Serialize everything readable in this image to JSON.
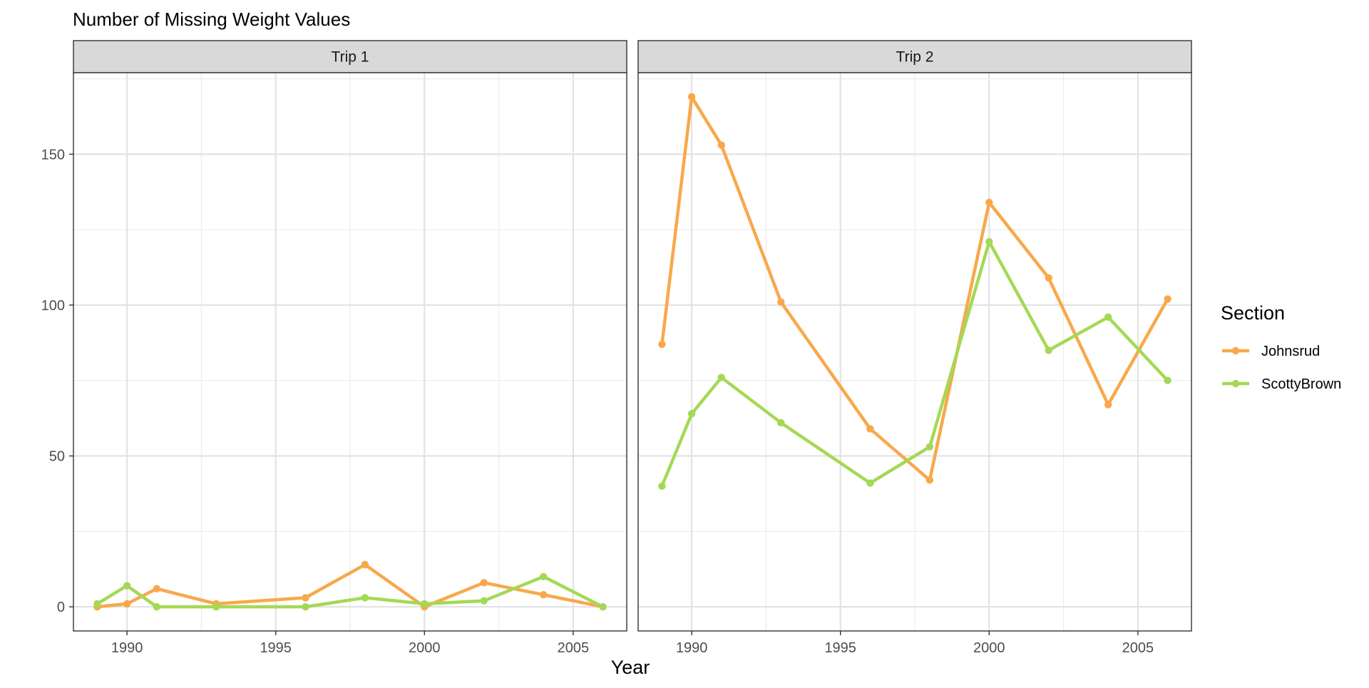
{
  "chart_data": {
    "type": "line",
    "title": "Number of Missing Weight Values",
    "xlabel": "Year",
    "ylabel": "",
    "xlim": [
      1988.2,
      2006.8
    ],
    "ylim": [
      -8,
      177
    ],
    "x_ticks": [
      1990,
      1995,
      2000,
      2005
    ],
    "x_minor_ticks": [
      1987.5,
      1992.5,
      1997.5,
      2002.5
    ],
    "y_ticks": [
      0,
      50,
      100,
      150
    ],
    "y_minor_ticks": [
      25,
      75,
      125,
      175
    ],
    "grid": true,
    "legend": {
      "title": "Section",
      "placement": "right",
      "entries": [
        {
          "name": "Johnsrud",
          "color": "#f8a84b"
        },
        {
          "name": "ScottyBrown",
          "color": "#a4d955"
        }
      ]
    },
    "panels": [
      {
        "strip": "Trip 1",
        "series": [
          {
            "name": "Johnsrud",
            "color": "#f8a84b",
            "x": [
              1989,
              1990,
              1991,
              1993,
              1996,
              1998,
              2000,
              2002,
              2004,
              2006
            ],
            "values": [
              0,
              1,
              6,
              1,
              3,
              14,
              0,
              8,
              4,
              0
            ]
          },
          {
            "name": "ScottyBrown",
            "color": "#a4d955",
            "x": [
              1989,
              1990,
              1991,
              1993,
              1996,
              1998,
              2000,
              2002,
              2004,
              2006
            ],
            "values": [
              1,
              7,
              0,
              0,
              0,
              3,
              1,
              2,
              10,
              0
            ]
          }
        ]
      },
      {
        "strip": "Trip 2",
        "series": [
          {
            "name": "Johnsrud",
            "color": "#f8a84b",
            "x": [
              1989,
              1990,
              1991,
              1993,
              1996,
              1998,
              2000,
              2002,
              2004,
              2006
            ],
            "values": [
              87,
              169,
              153,
              101,
              59,
              42,
              134,
              109,
              67,
              102
            ]
          },
          {
            "name": "ScottyBrown",
            "color": "#a4d955",
            "x": [
              1989,
              1990,
              1991,
              1993,
              1996,
              1998,
              2000,
              2002,
              2004,
              2006
            ],
            "values": [
              40,
              64,
              76,
              61,
              41,
              53,
              121,
              85,
              96,
              75
            ]
          }
        ]
      }
    ]
  }
}
